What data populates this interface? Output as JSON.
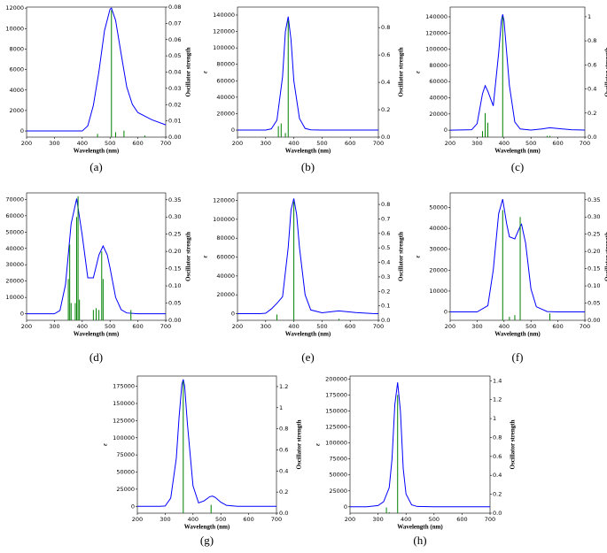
{
  "chart_data": [
    {
      "type": "line",
      "caption": "(a)",
      "xlabel": "Wavelength (nm)",
      "ylabel": "ε",
      "y2label": "Oscillator strength",
      "x": [
        200,
        300,
        400,
        420,
        440,
        460,
        480,
        500,
        505,
        520,
        540,
        560,
        580,
        600,
        650,
        700
      ],
      "series": [
        {
          "color": "#0000ff",
          "values": [
            0,
            0,
            0,
            500,
            2500,
            5800,
            9800,
            11900,
            12000,
            10800,
            7500,
            4300,
            2600,
            1800,
            1100,
            600
          ]
        },
        {
          "color": "#008000",
          "axis": "y2",
          "x": [
            455,
            505,
            520,
            550,
            625
          ],
          "values": [
            0.002,
            0.078,
            0.003,
            0.004,
            0.001
          ]
        }
      ],
      "xlim": [
        200,
        700
      ],
      "xticks": [
        200,
        300,
        400,
        500,
        600,
        700
      ],
      "ylim": [
        -600,
        12100
      ],
      "yticks": [
        0,
        2000,
        4000,
        6000,
        8000,
        10000,
        12000
      ],
      "y2lim": [
        0,
        0.08
      ],
      "y2ticks": [
        {
          "value": 0,
          "label": "0.00"
        },
        {
          "value": 0.01,
          "label": "0.01"
        },
        {
          "value": 0.02,
          "label": "0.02"
        },
        {
          "value": 0.03,
          "label": "0.03"
        },
        {
          "value": 0.04,
          "label": "0.04"
        },
        {
          "value": 0.05,
          "label": "0.05"
        },
        {
          "value": 0.06,
          "label": "0.06"
        },
        {
          "value": 0.07,
          "label": "0.07"
        },
        {
          "value": 0.08,
          "label": "0.08"
        }
      ]
    },
    {
      "type": "line",
      "caption": "(b)",
      "xlabel": "Wavelength (nm)",
      "ylabel": "ε",
      "y2label": "Oscillator strength",
      "x": [
        200,
        300,
        320,
        340,
        360,
        370,
        380,
        390,
        400,
        420,
        440,
        460,
        500,
        700
      ],
      "series": [
        {
          "color": "#0000ff",
          "values": [
            0,
            0,
            1500,
            12000,
            65000,
            120000,
            138000,
            110000,
            60000,
            14000,
            2000,
            300,
            0,
            0
          ]
        },
        {
          "color": "#008000",
          "axis": "y2",
          "x": [
            345,
            355,
            370,
            380
          ],
          "values": [
            0.08,
            0.1,
            0.03,
            0.85
          ]
        }
      ],
      "xlim": [
        200,
        700
      ],
      "xticks": [
        200,
        300,
        400,
        500,
        600,
        700
      ],
      "ylim": [
        -8600,
        149700
      ],
      "yticks": [
        0,
        20000,
        40000,
        60000,
        80000,
        100000,
        120000,
        140000
      ],
      "y2lim": [
        0,
        0.95
      ],
      "y2ticks": [
        {
          "value": 0,
          "label": "0.0"
        },
        0.2,
        0.4,
        0.6,
        0.8
      ]
    },
    {
      "type": "line",
      "caption": "(c)",
      "xlabel": "Wavelength (nm)",
      "ylabel": "ε",
      "y2label": "Oscillator strength",
      "x": [
        200,
        280,
        300,
        320,
        330,
        340,
        360,
        380,
        390,
        395,
        400,
        420,
        440,
        460,
        500,
        540,
        570,
        600,
        650,
        700
      ],
      "series": [
        {
          "color": "#0000ff",
          "values": [
            0,
            500,
            8000,
            45000,
            55000,
            48000,
            30000,
            95000,
            135000,
            143000,
            135000,
            55000,
            10000,
            1500,
            200,
            1500,
            3000,
            2000,
            500,
            100
          ]
        },
        {
          "color": "#008000",
          "axis": "y2",
          "x": [
            320,
            330,
            340,
            395,
            560,
            570
          ],
          "values": [
            0.05,
            0.2,
            0.12,
            1.0,
            0.01,
            0.01
          ]
        }
      ],
      "xlim": [
        200,
        700
      ],
      "xticks": [
        200,
        300,
        400,
        500,
        600,
        700
      ],
      "ylim": [
        -8600,
        152000
      ],
      "yticks": [
        0,
        20000,
        40000,
        60000,
        80000,
        100000,
        120000,
        140000
      ],
      "y2lim": [
        0,
        1.08
      ],
      "y2ticks": [
        {
          "value": 0,
          "label": "0.0"
        },
        0.2,
        0.4,
        0.6,
        0.8,
        1
      ]
    },
    {
      "type": "line",
      "caption": "(d)",
      "xlabel": "Wavelength (nm)",
      "ylabel": "ε",
      "y2label": "Oscillator strength",
      "x": [
        200,
        300,
        320,
        340,
        360,
        380,
        400,
        420,
        440,
        460,
        475,
        490,
        500,
        520,
        540,
        560,
        600,
        700
      ],
      "series": [
        {
          "color": "#0000ff",
          "values": [
            0,
            0,
            2000,
            18000,
            55000,
            70500,
            48000,
            22000,
            22000,
            36000,
            41500,
            36000,
            28000,
            10000,
            2500,
            500,
            0,
            0
          ]
        },
        {
          "color": "#008000",
          "axis": "y2",
          "x": [
            350,
            355,
            360,
            375,
            380,
            385,
            390,
            440,
            450,
            460,
            470,
            475,
            575
          ],
          "values": [
            0.12,
            0.22,
            0.05,
            0.05,
            0.3,
            0.36,
            0.06,
            0.03,
            0.035,
            0.03,
            0.2,
            0.12,
            0.03
          ]
        }
      ],
      "xlim": [
        200,
        700
      ],
      "xticks": [
        200,
        300,
        400,
        500,
        600,
        700
      ],
      "ylim": [
        -4000,
        74000
      ],
      "yticks": [
        0,
        10000,
        20000,
        30000,
        40000,
        50000,
        60000,
        70000
      ],
      "y2lim": [
        0,
        0.37
      ],
      "y2ticks": [
        {
          "value": 0,
          "label": "0.00"
        },
        {
          "value": 0.05,
          "label": "0.05"
        },
        {
          "value": 0.1,
          "label": "0.10"
        },
        {
          "value": 0.15,
          "label": "0.15"
        },
        {
          "value": 0.2,
          "label": "0.20"
        },
        {
          "value": 0.25,
          "label": "0.25"
        },
        {
          "value": 0.3,
          "label": "0.30"
        },
        {
          "value": 0.35,
          "label": "0.35"
        }
      ]
    },
    {
      "type": "line",
      "caption": "(e)",
      "xlabel": "Wavelength (nm)",
      "ylabel": "ε",
      "y2label": "Oscillator strength",
      "x": [
        200,
        280,
        300,
        320,
        340,
        360,
        380,
        390,
        400,
        410,
        420,
        440,
        460,
        500,
        560,
        620,
        680,
        700
      ],
      "series": [
        {
          "color": "#0000ff",
          "values": [
            0,
            0,
            500,
            5000,
            11000,
            18000,
            70000,
            110000,
            122000,
            105000,
            70000,
            20000,
            4000,
            1000,
            3000,
            1200,
            100,
            0
          ]
        },
        {
          "color": "#008000",
          "axis": "y2",
          "x": [
            340,
            400,
            560
          ],
          "values": [
            0.04,
            0.82,
            0.01
          ]
        }
      ],
      "xlim": [
        200,
        700
      ],
      "xticks": [
        200,
        300,
        400,
        500,
        600,
        700
      ],
      "ylim": [
        -7000,
        128000
      ],
      "yticks": [
        0,
        20000,
        40000,
        60000,
        80000,
        100000,
        120000
      ],
      "y2lim": [
        0,
        0.88
      ],
      "y2ticks": [
        {
          "value": 0,
          "label": "0.0"
        },
        0.1,
        0.2,
        0.3,
        0.4,
        0.5,
        0.6,
        0.7,
        0.8
      ]
    },
    {
      "type": "line",
      "caption": "(f)",
      "xlabel": "Wavelength (nm)",
      "ylabel": "ε",
      "y2label": "Oscillator strength",
      "x": [
        200,
        300,
        340,
        360,
        380,
        395,
        410,
        420,
        440,
        460,
        465,
        480,
        500,
        520,
        560,
        600,
        700
      ],
      "series": [
        {
          "color": "#0000ff",
          "values": [
            0,
            0,
            3000,
            20000,
            47000,
            54000,
            42000,
            36000,
            35000,
            41000,
            42000,
            33000,
            11000,
            2500,
            200,
            0,
            0
          ]
        },
        {
          "color": "#008000",
          "axis": "y2",
          "x": [
            395,
            420,
            440,
            460,
            570
          ],
          "values": [
            0.32,
            0.01,
            0.015,
            0.3,
            0.02
          ]
        }
      ],
      "xlim": [
        200,
        700
      ],
      "xticks": [
        200,
        300,
        400,
        500,
        600,
        700
      ],
      "ylim": [
        -4000,
        57000
      ],
      "yticks": [
        0,
        10000,
        20000,
        30000,
        40000,
        50000
      ],
      "y2lim": [
        0,
        0.37
      ],
      "y2ticks": [
        {
          "value": 0,
          "label": "0.00"
        },
        {
          "value": 0.05,
          "label": "0.05"
        },
        {
          "value": 0.1,
          "label": "0.10"
        },
        {
          "value": 0.15,
          "label": "0.15"
        },
        {
          "value": 0.2,
          "label": "0.20"
        },
        {
          "value": 0.25,
          "label": "0.25"
        },
        {
          "value": 0.3,
          "label": "0.30"
        },
        {
          "value": 0.35,
          "label": "0.35"
        }
      ]
    },
    {
      "type": "line",
      "caption": "(g)",
      "xlabel": "Wavelength (nm)",
      "ylabel": "ε",
      "y2label": "Oscillator strength",
      "x": [
        200,
        280,
        300,
        320,
        340,
        350,
        360,
        365,
        370,
        380,
        400,
        420,
        440,
        460,
        470,
        480,
        500,
        520,
        560,
        700
      ],
      "series": [
        {
          "color": "#0000ff",
          "values": [
            0,
            0,
            500,
            12000,
            70000,
            130000,
            178000,
            185000,
            175000,
            120000,
            30000,
            5000,
            8000,
            14000,
            15000,
            13000,
            6000,
            1500,
            0,
            0
          ]
        },
        {
          "color": "#008000",
          "axis": "y2",
          "x": [
            365,
            465
          ],
          "values": [
            1.25,
            0.08
          ]
        }
      ],
      "xlim": [
        200,
        700
      ],
      "xticks": [
        200,
        300,
        400,
        500,
        600,
        700
      ],
      "ylim": [
        -10000,
        190000
      ],
      "yticks": [
        0,
        25000,
        50000,
        75000,
        100000,
        125000,
        150000,
        175000
      ],
      "y2lim": [
        0,
        1.3
      ],
      "y2ticks": [
        {
          "value": 0,
          "label": "0.0"
        },
        0.2,
        0.4,
        0.6,
        0.8,
        1,
        1.2
      ]
    },
    {
      "type": "line",
      "caption": "(h)",
      "xlabel": "Wavelength (nm)",
      "ylabel": "ε",
      "y2label": "Oscillator strength",
      "x": [
        200,
        260,
        300,
        320,
        340,
        350,
        360,
        370,
        380,
        390,
        400,
        420,
        440,
        500,
        600,
        700
      ],
      "series": [
        {
          "color": "#0000ff",
          "values": [
            0,
            0,
            2000,
            8000,
            30000,
            75000,
            160000,
            195000,
            150000,
            60000,
            20000,
            3000,
            500,
            0,
            0,
            0
          ]
        },
        {
          "color": "#008000",
          "axis": "y2",
          "x": [
            330,
            340,
            370
          ],
          "values": [
            0.06,
            0.01,
            1.25
          ]
        }
      ],
      "xlim": [
        200,
        700
      ],
      "xticks": [
        200,
        300,
        400,
        500,
        600,
        700
      ],
      "ylim": [
        -10000,
        205000
      ],
      "yticks": [
        0,
        25000,
        50000,
        75000,
        100000,
        125000,
        150000,
        175000,
        200000
      ],
      "y2lim": [
        0,
        1.45
      ],
      "y2ticks": [
        {
          "value": 0,
          "label": "0.0"
        },
        0.2,
        0.4,
        0.6,
        0.8,
        1,
        1.2,
        1.4
      ]
    }
  ]
}
